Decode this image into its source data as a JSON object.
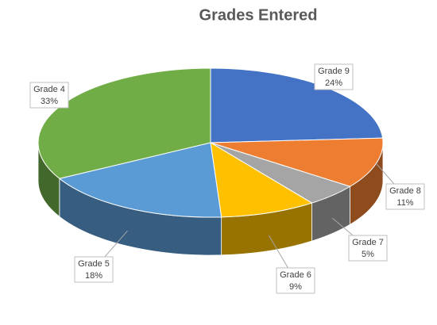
{
  "chart_data": {
    "type": "pie3d",
    "title": "Grades Entered",
    "categories": [
      "Grade 9",
      "Grade 8",
      "Grade 7",
      "Grade 6",
      "Grade 5",
      "Grade 4"
    ],
    "values": [
      24,
      11,
      5,
      9,
      18,
      33
    ],
    "value_labels": [
      "24%",
      "11%",
      "5%",
      "9%",
      "18%",
      "33%"
    ],
    "colors": [
      "#4472c4",
      "#ed7d31",
      "#a5a5a5",
      "#ffc000",
      "#5b9bd5",
      "#70ad47"
    ]
  }
}
